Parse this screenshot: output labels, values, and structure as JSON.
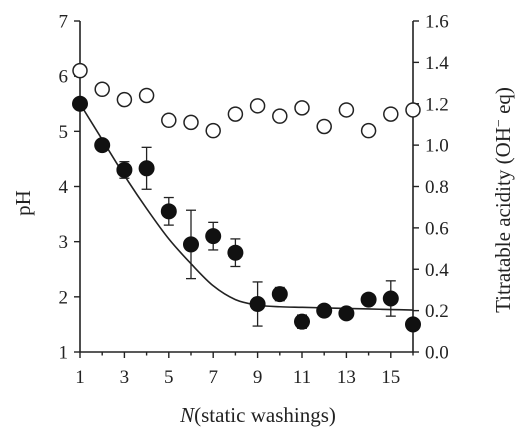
{
  "chart_data": {
    "type": "scatter",
    "xlabel": {
      "italic": "N",
      "rest": "(static washings)"
    },
    "ylabel_left": "pH",
    "ylabel_right": {
      "main": "Titratable acidity (OH",
      "sup": "−",
      "tail": " eq)"
    },
    "xlim": [
      1,
      16
    ],
    "ylim_left": [
      1,
      7
    ],
    "ylim_right": [
      0,
      1.6
    ],
    "x_ticks": [
      "1",
      "3",
      "5",
      "7",
      "9",
      "11",
      "13",
      "15"
    ],
    "y_left_ticks": [
      "1",
      "2",
      "3",
      "4",
      "5",
      "6",
      "7"
    ],
    "y_right_ticks": [
      "0.0",
      "0.2",
      "0.4",
      "0.6",
      "0.8",
      "1.0",
      "1.2",
      "1.4",
      "1.6"
    ],
    "grid": false,
    "series": [
      {
        "marker": "filled-circle",
        "axis": "left",
        "x": [
          1,
          2,
          3,
          4,
          5,
          6,
          7,
          8,
          9,
          10,
          11,
          12,
          13,
          14,
          15,
          16
        ],
        "y": [
          5.5,
          4.75,
          4.3,
          4.33,
          3.55,
          2.95,
          3.1,
          2.8,
          1.87,
          2.05,
          1.55,
          1.75,
          1.7,
          1.95,
          1.97,
          1.5
        ],
        "err": [
          0,
          0,
          0.15,
          0.38,
          0.25,
          0.62,
          0.25,
          0.25,
          0.4,
          0.12,
          0.12,
          0,
          0,
          0,
          0.32,
          0
        ]
      },
      {
        "marker": "open-circle",
        "axis": "right",
        "x": [
          1,
          2,
          3,
          4,
          5,
          6,
          7,
          8,
          9,
          10,
          11,
          12,
          13,
          14,
          15,
          16
        ],
        "y": [
          1.36,
          1.27,
          1.22,
          1.24,
          1.12,
          1.11,
          1.07,
          1.15,
          1.19,
          1.14,
          1.18,
          1.09,
          1.17,
          1.07,
          1.15,
          1.17
        ]
      }
    ],
    "fit_curve": {
      "axis": "left",
      "x": [
        1,
        2,
        3,
        4,
        5,
        6,
        7,
        8,
        9,
        10,
        11,
        12,
        13,
        14,
        15,
        16
      ],
      "y": [
        5.5,
        4.85,
        4.2,
        3.6,
        3.05,
        2.6,
        2.2,
        1.95,
        1.85,
        1.82,
        1.81,
        1.8,
        1.79,
        1.78,
        1.77,
        1.76
      ]
    }
  }
}
